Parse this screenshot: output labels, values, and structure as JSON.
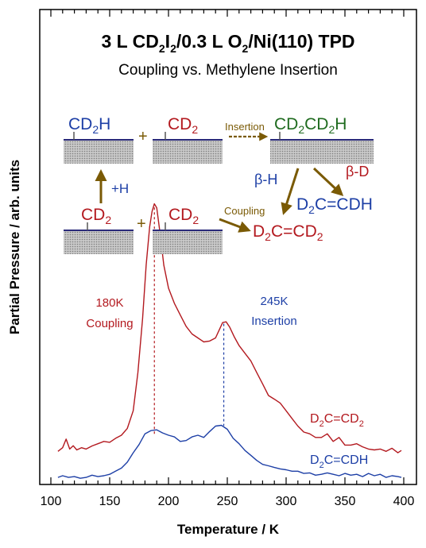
{
  "colors": {
    "red": "#b3191f",
    "blue": "#1d3fa6",
    "green": "#1f6b1f",
    "olive": "#7a5a05",
    "black": "#000000"
  },
  "chart_data": {
    "type": "line",
    "title_parts": [
      "3 L CD",
      "2",
      "I",
      "2",
      "/0.3 L O",
      "2",
      "/Ni(110) TPD"
    ],
    "subtitle": "Coupling vs. Methylene Insertion",
    "xlabel": "Temperature / K",
    "ylabel": "Partial Pressure / arb. units",
    "xlim": [
      100,
      400
    ],
    "xticks": [
      100,
      150,
      200,
      250,
      300,
      350,
      400
    ],
    "ylim": [
      0,
      100
    ],
    "grid": false,
    "series": [
      {
        "name_parts": [
          "D",
          "2",
          "C=CD",
          "2"
        ],
        "color": "#b3191f",
        "x": [
          106,
          110,
          113,
          116,
          119,
          122,
          126,
          130,
          135,
          140,
          145,
          150,
          155,
          160,
          165,
          170,
          174,
          178,
          181,
          184,
          186,
          188,
          190,
          193,
          196,
          200,
          205,
          210,
          215,
          220,
          225,
          230,
          235,
          240,
          243,
          246,
          249,
          252,
          256,
          260,
          265,
          270,
          275,
          280,
          285,
          290,
          295,
          300,
          305,
          310,
          315,
          320,
          325,
          330,
          335,
          340,
          345,
          350,
          355,
          360,
          365,
          370,
          375,
          380,
          385,
          390,
          395,
          398
        ],
        "y": [
          10.0,
          11.3,
          14.3,
          10.8,
          12.0,
          10.5,
          11.3,
          10.8,
          11.9,
          12.7,
          13.5,
          13.2,
          14.6,
          15.7,
          18.1,
          24.3,
          37.8,
          56.8,
          75.7,
          89.2,
          94.6,
          97.3,
          95.9,
          86.5,
          75.7,
          67.6,
          62.2,
          58.1,
          54.1,
          51.4,
          50.0,
          48.6,
          48.9,
          50.0,
          52.7,
          55.4,
          55.7,
          53.8,
          50.3,
          47.3,
          44.6,
          41.9,
          37.8,
          33.8,
          29.7,
          28.4,
          27.0,
          24.3,
          21.6,
          18.9,
          16.8,
          16.2,
          14.9,
          14.9,
          16.2,
          13.5,
          14.9,
          12.2,
          12.2,
          12.7,
          11.6,
          10.8,
          10.5,
          10.8,
          10.0,
          11.1,
          9.5,
          10.3
        ]
      },
      {
        "name_parts": [
          "D",
          "2",
          "C=CDH"
        ],
        "color": "#1d3fa6",
        "x": [
          106,
          110,
          115,
          120,
          125,
          130,
          135,
          140,
          145,
          150,
          155,
          160,
          165,
          170,
          175,
          180,
          185,
          190,
          195,
          200,
          205,
          210,
          215,
          220,
          225,
          230,
          235,
          240,
          245,
          250,
          255,
          260,
          265,
          270,
          275,
          280,
          285,
          290,
          295,
          300,
          305,
          310,
          315,
          320,
          325,
          330,
          335,
          340,
          345,
          350,
          355,
          360,
          365,
          370,
          375,
          380,
          385,
          390,
          395,
          398
        ],
        "y": [
          0.8,
          1.4,
          0.8,
          1.1,
          0.5,
          0.8,
          1.6,
          1.1,
          1.4,
          1.9,
          3.0,
          4.1,
          6.2,
          9.5,
          12.4,
          16.2,
          17.3,
          17.6,
          16.5,
          15.7,
          15.1,
          13.5,
          13.8,
          15.1,
          15.7,
          14.9,
          17.0,
          18.9,
          19.2,
          17.8,
          14.6,
          12.7,
          10.3,
          8.6,
          6.8,
          5.4,
          4.9,
          4.3,
          3.8,
          3.5,
          3.0,
          3.0,
          2.2,
          2.4,
          1.6,
          1.9,
          2.4,
          1.9,
          1.4,
          2.2,
          1.6,
          1.9,
          1.1,
          2.2,
          1.4,
          1.9,
          0.8,
          1.4,
          1.1,
          0.8
        ]
      }
    ],
    "annotations": {
      "peak1": {
        "x": 188,
        "lines": [
          "180K",
          "Coupling"
        ]
      },
      "peak2": {
        "x": 247,
        "lines": [
          "245K",
          "Insertion"
        ]
      }
    },
    "scheme": {
      "cd2h": [
        "CD",
        "2",
        "H"
      ],
      "cd2": [
        "CD",
        "2"
      ],
      "plus": "+",
      "insertion": "Insertion",
      "cd2cd2h": [
        "CD",
        "2",
        "CD",
        "2",
        "H"
      ],
      "beta_h": "β-H",
      "beta_d": "β-D",
      "plus_h": "+H",
      "coupling": "Coupling",
      "d2ccd2": [
        "D",
        "2",
        "C=CD",
        "2"
      ],
      "d2ccdh": [
        "D",
        "2",
        "C=CDH"
      ]
    }
  }
}
